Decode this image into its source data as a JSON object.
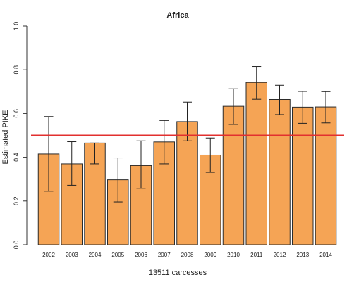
{
  "chart_data": {
    "type": "bar",
    "title": "Africa",
    "xlabel": "13511 carcesses",
    "ylabel": "Estimated PIKE",
    "ylim": [
      0,
      1
    ],
    "yticks": [
      "0.0",
      "0.2",
      "0.4",
      "0.6",
      "0.8",
      "1.0"
    ],
    "ytick_values": [
      0,
      0.2,
      0.4,
      0.6,
      0.8,
      1.0
    ],
    "categories": [
      "2002",
      "2003",
      "2004",
      "2005",
      "2006",
      "2007",
      "2008",
      "2009",
      "2010",
      "2011",
      "2012",
      "2013",
      "2014"
    ],
    "values": [
      0.415,
      0.37,
      0.465,
      0.297,
      0.362,
      0.47,
      0.563,
      0.41,
      0.633,
      0.742,
      0.664,
      0.629,
      0.63
    ],
    "error_lower": [
      0.245,
      0.272,
      0.37,
      0.196,
      0.258,
      0.37,
      0.475,
      0.331,
      0.55,
      0.665,
      0.595,
      0.555,
      0.557
    ],
    "error_upper": [
      0.586,
      0.471,
      0.465,
      0.397,
      0.475,
      0.568,
      0.652,
      0.488,
      0.713,
      0.815,
      0.729,
      0.701,
      0.7
    ],
    "reference_line": 0.5,
    "grid": false,
    "colors": {
      "bar_fill": "#f5a455",
      "bar_stroke": "#2b2b2b",
      "reference_line": "#e2302f",
      "axis": "#333333",
      "text": "#222222"
    }
  }
}
